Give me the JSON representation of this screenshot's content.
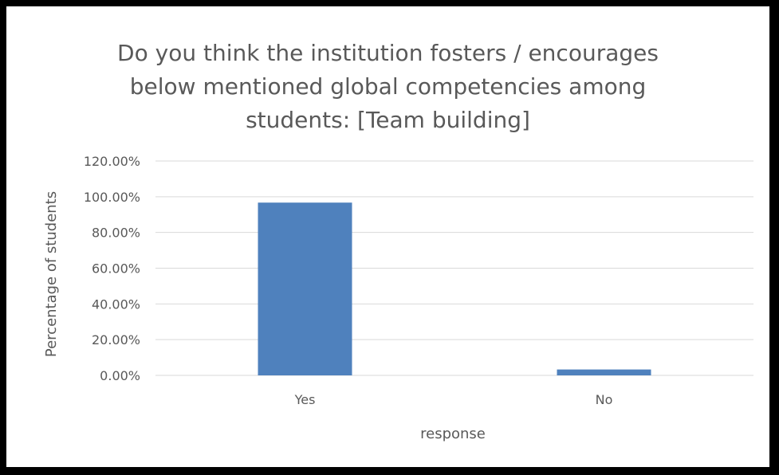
{
  "chart_data": {
    "type": "bar",
    "title_lines": [
      "Do you think the institution fosters / encourages",
      "below mentioned global competencies among",
      "students: [Team building]"
    ],
    "categories": [
      "Yes",
      "No"
    ],
    "values": [
      96.7,
      3.3
    ],
    "xlabel": "response",
    "ylabel": "Percentage of students",
    "ylim": [
      0,
      120
    ],
    "yticks": [
      "0.00%",
      "20.00%",
      "40.00%",
      "60.00%",
      "80.00%",
      "100.00%",
      "120.00%"
    ],
    "ytick_values": [
      0,
      20,
      40,
      60,
      80,
      100,
      120
    ],
    "grid": true,
    "bar_color": "#4F81BD",
    "grid_color": "#D9D9D9",
    "text_color": "#595959"
  }
}
